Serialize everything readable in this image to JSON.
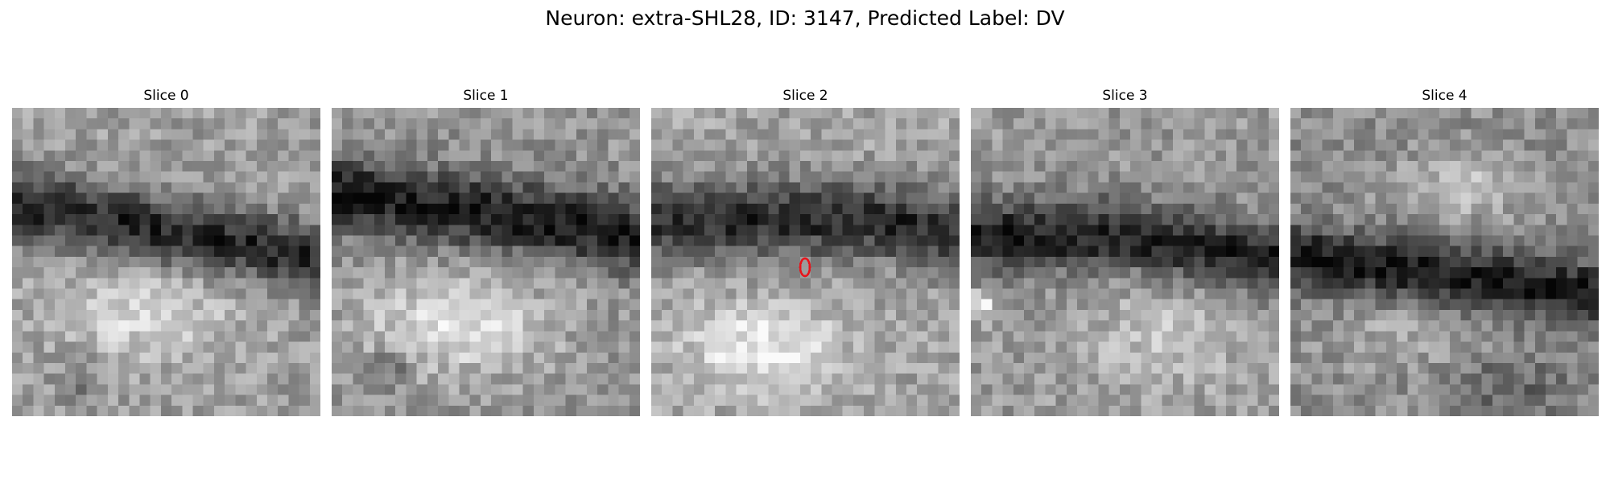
{
  "figure": {
    "title": "Neuron: extra-SHL28, ID: 3147, Predicted Label: DV"
  },
  "slices": [
    {
      "title": "Slice 0",
      "marker": false
    },
    {
      "title": "Slice 1",
      "marker": false
    },
    {
      "title": "Slice 2",
      "marker": true
    },
    {
      "title": "Slice 3",
      "marker": false
    },
    {
      "title": "Slice 4",
      "marker": false
    }
  ],
  "colors": {
    "marker": "#e8141b",
    "background": "#ffffff",
    "colormap": "grayscale"
  }
}
